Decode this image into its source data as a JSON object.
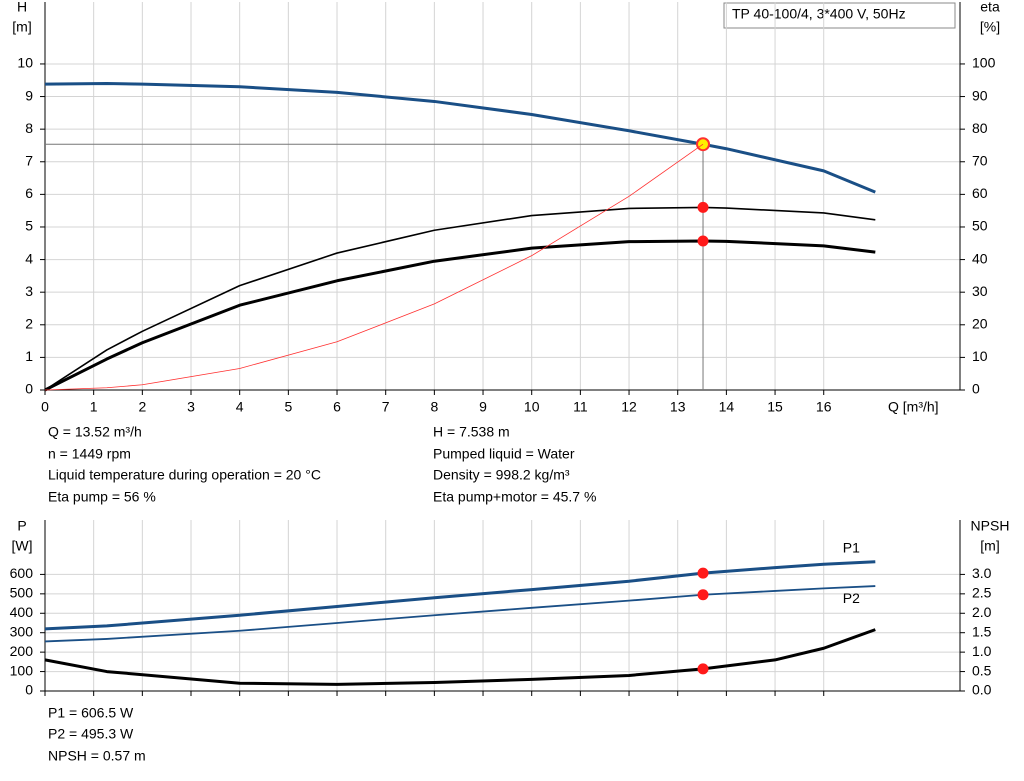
{
  "chart_data": [
    {
      "type": "line",
      "title": "TP 40-100/4, 3*400 V, 50Hz",
      "xlabel": "Q [m³/h]",
      "ylabel": "H",
      "ylabel_unit": "[m]",
      "y2label": "eta",
      "y2label_unit": "[%]",
      "x": [
        0,
        1.27,
        2,
        4,
        6,
        8,
        10,
        12,
        13.52,
        14,
        16,
        17.06
      ],
      "series": [
        {
          "color": "#1a4f86",
          "width": 3,
          "axis": "y",
          "values": [
            9.38,
            9.4,
            9.38,
            9.3,
            9.13,
            8.85,
            8.45,
            7.95,
            7.538,
            7.4,
            6.72,
            6.07
          ]
        },
        {
          "color": "#000000",
          "width": 1.6,
          "axis": "y2",
          "values": [
            0,
            12.3,
            18,
            32,
            42,
            49,
            53.5,
            55.7,
            56,
            55.8,
            54.3,
            52.2
          ]
        },
        {
          "color": "#000000",
          "width": 3,
          "axis": "y2",
          "values": [
            0,
            9.5,
            14.5,
            26,
            33.5,
            39.5,
            43.5,
            45.5,
            45.7,
            45.6,
            44.2,
            42.3
          ]
        },
        {
          "color": "#ff3030",
          "width": 0.8,
          "axis": "y",
          "values": [
            0,
            0.07,
            0.16,
            0.66,
            1.48,
            2.64,
            4.12,
            5.94,
            7.538,
            null,
            null,
            null
          ]
        }
      ],
      "operating_index": 8,
      "xlim": [
        0,
        18.8
      ],
      "ylim": [
        0,
        11.9
      ],
      "y2lim": [
        0,
        119
      ],
      "xticks": [
        0,
        1,
        2,
        3,
        4,
        5,
        6,
        7,
        8,
        9,
        10,
        11,
        12,
        13,
        14,
        15,
        16
      ],
      "yticks": [
        0,
        1,
        2,
        3,
        4,
        5,
        6,
        7,
        8,
        9,
        10
      ],
      "y2ticks": [
        0,
        10,
        20,
        30,
        40,
        50,
        60,
        70,
        80,
        90,
        100
      ],
      "grid": true,
      "annotations": [
        "Q = 13.52 m³/h",
        "n = 1449 rpm",
        "Liquid temperature during operation = 20 °C",
        "Eta pump = 56 %",
        "H = 7.538 m",
        "Pumped liquid = Water",
        "Density = 998.2 kg/m³",
        "Eta pump+motor = 45.7 %"
      ]
    },
    {
      "type": "line",
      "ylabel": "P",
      "ylabel_unit": "[W]",
      "y2label": "NPSH",
      "y2label_unit": "[m]",
      "x": [
        0,
        1.27,
        4,
        6,
        8,
        10,
        12,
        13.52,
        15,
        16,
        17.06
      ],
      "series": [
        {
          "name": "P1",
          "color": "#1a4f86",
          "width": 3,
          "axis": "y",
          "values": [
            320,
            335,
            390,
            435,
            480,
            522,
            565,
            606.5,
            635,
            652,
            665
          ]
        },
        {
          "name": "P2",
          "color": "#1a4f86",
          "width": 1.8,
          "axis": "y",
          "values": [
            255,
            268,
            310,
            350,
            390,
            428,
            465,
            495.3,
            515,
            528,
            540
          ]
        },
        {
          "color": "#000000",
          "width": 3,
          "axis": "y2",
          "values": [
            0.8,
            0.5,
            0.2,
            0.17,
            0.22,
            0.3,
            0.4,
            0.57,
            0.8,
            1.1,
            1.58
          ]
        }
      ],
      "operating_index": 7,
      "xlim": [
        0,
        18.8
      ],
      "ylim": [
        0,
        880
      ],
      "y2lim": [
        0,
        4.4
      ],
      "xticks": [
        0,
        1,
        2,
        3,
        4,
        5,
        6,
        7,
        8,
        9,
        10,
        11,
        12,
        13,
        14,
        15,
        16
      ],
      "yticks": [
        0,
        100,
        200,
        300,
        400,
        500,
        600
      ],
      "y2ticks": [
        {
          "value": 0,
          "label": "0.0"
        },
        0.5,
        {
          "value": 1,
          "label": "1.0"
        },
        1.5,
        {
          "value": 2,
          "label": "2.0"
        },
        2.5,
        {
          "value": 3,
          "label": "3.0"
        }
      ],
      "grid": true,
      "annotations": [
        "P1 = 606.5 W",
        "P2 = 495.3 W",
        "NPSH = 0.57 m"
      ]
    }
  ]
}
